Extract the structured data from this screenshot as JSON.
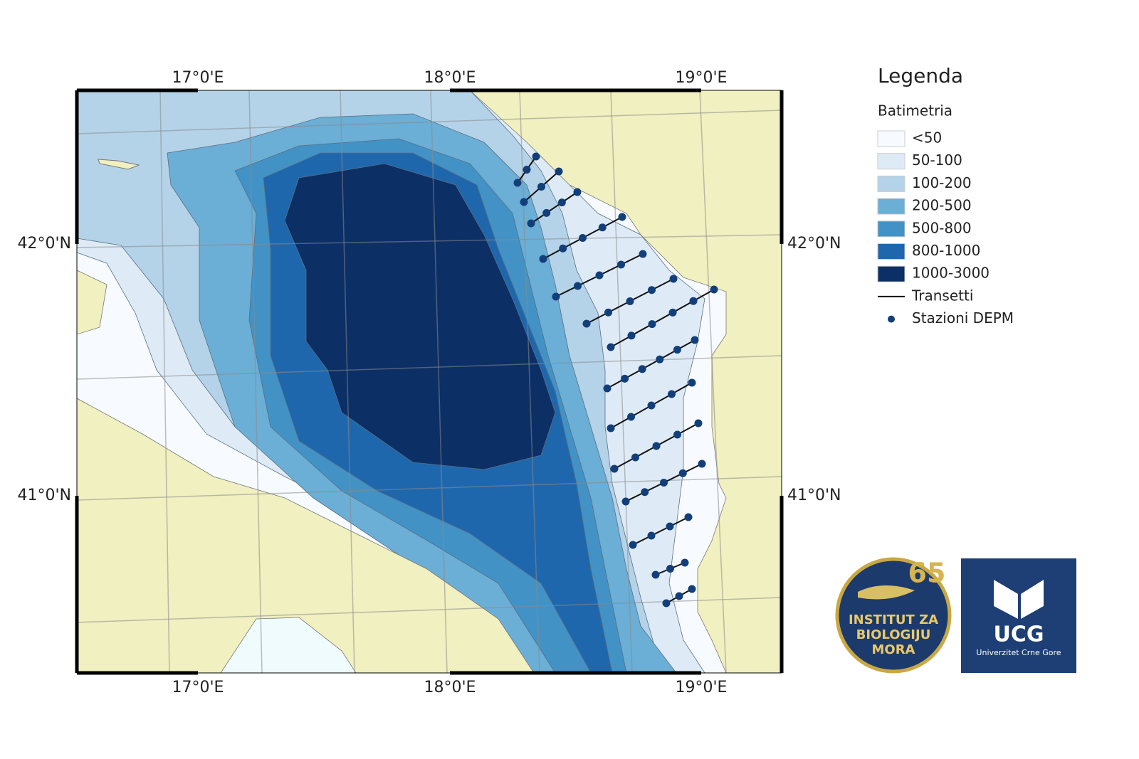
{
  "map": {
    "lon_labels": [
      "17°0'E",
      "18°0'E",
      "19°0'E"
    ],
    "lat_labels": [
      "42°0'N",
      "41°0'N"
    ],
    "legend": {
      "title": "Legenda",
      "subtitle": "Batimetria",
      "classes": [
        {
          "label": "<50",
          "color": "#f7fbff"
        },
        {
          "label": "50-100",
          "color": "#deebf7"
        },
        {
          "label": "100-200",
          "color": "#b4d3e9"
        },
        {
          "label": "200-500",
          "color": "#6baed6"
        },
        {
          "label": "500-800",
          "color": "#4292c6"
        },
        {
          "label": "800-1000",
          "color": "#1f67ad"
        },
        {
          "label": "1000-3000",
          "color": "#0c2f66"
        }
      ],
      "line_label": "Transetti",
      "point_label": "Stazioni DEPM"
    }
  },
  "logos": {
    "institute": {
      "number": "65",
      "lines": [
        "INSTITUT ZA",
        "BIOLOGIJU",
        "MORA"
      ]
    },
    "university": {
      "short": "UCG",
      "name": "Univerzitet Crne Gore"
    }
  }
}
